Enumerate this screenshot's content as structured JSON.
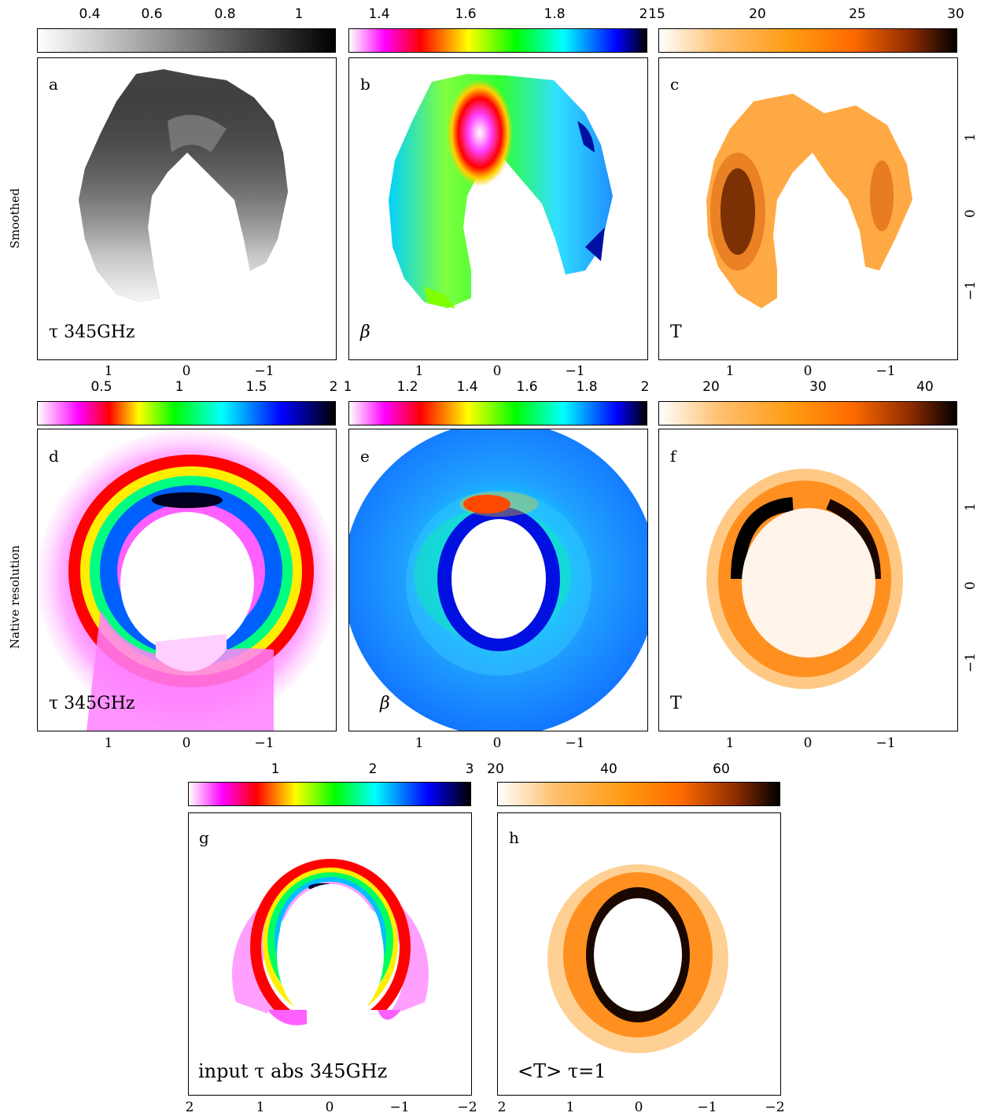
{
  "row_labels": {
    "smoothed": "Smoothed",
    "native": "Native resolution"
  },
  "colorbars": {
    "a": {
      "ticks": [
        "0.4",
        "0.6",
        "0.8",
        "1"
      ],
      "stops": [
        "#ffffff",
        "#000000"
      ]
    },
    "b": {
      "ticks": [
        "1.4",
        "1.6",
        "1.8",
        "2"
      ],
      "stops": [
        "#ffffff",
        "#ff00ff",
        "#ff0000",
        "#ffff00",
        "#00ff00",
        "#00ffff",
        "#0000ff",
        "#000000"
      ]
    },
    "c": {
      "ticks": [
        "15",
        "20",
        "25",
        "30"
      ],
      "stops": [
        "#ffffff",
        "#ffa020",
        "#ff7000",
        "#000000"
      ]
    },
    "d": {
      "ticks": [
        "0.5",
        "1",
        "1.5",
        "2"
      ],
      "stops": [
        "#ffffff",
        "#ff00ff",
        "#ff0000",
        "#ffff00",
        "#00ff00",
        "#00ffff",
        "#0000ff",
        "#000000"
      ]
    },
    "e": {
      "ticks": [
        "1",
        "1.2",
        "1.4",
        "1.6",
        "1.8",
        "2"
      ],
      "stops": [
        "#ffffff",
        "#ff00ff",
        "#ff0000",
        "#ffff00",
        "#00ff00",
        "#00ffff",
        "#0000ff",
        "#000000"
      ]
    },
    "f": {
      "ticks": [
        "20",
        "30",
        "40"
      ],
      "stops": [
        "#ffffff",
        "#ffa020",
        "#ff7000",
        "#000000"
      ]
    },
    "g": {
      "ticks": [
        "1",
        "2",
        "3"
      ],
      "stops": [
        "#ffffff",
        "#ff00ff",
        "#ff0000",
        "#ffff00",
        "#00ff00",
        "#00ffff",
        "#0000ff",
        "#000000"
      ]
    },
    "h": {
      "ticks": [
        "20",
        "40",
        "60"
      ],
      "stops": [
        "#ffffff",
        "#ffa020",
        "#ff7000",
        "#000000"
      ]
    }
  },
  "panels": {
    "a": {
      "letter": "a",
      "label": "τ 345GHz"
    },
    "b": {
      "letter": "b",
      "label": "β"
    },
    "c": {
      "letter": "c",
      "label": "T"
    },
    "d": {
      "letter": "d",
      "label": "τ 345GHz"
    },
    "e": {
      "letter": "e",
      "label": "β"
    },
    "f": {
      "letter": "f",
      "label": "T"
    },
    "g": {
      "letter": "g",
      "label": "input τ abs 345GHz"
    },
    "h": {
      "letter": "h",
      "label": "<T> τ=1"
    }
  },
  "axis_ticks": {
    "x_small": [
      "1",
      "0",
      "−1"
    ],
    "y_right": [
      "1",
      "0",
      "−1"
    ],
    "x_wide": [
      "2",
      "1",
      "0",
      "−1",
      "−2"
    ]
  }
}
